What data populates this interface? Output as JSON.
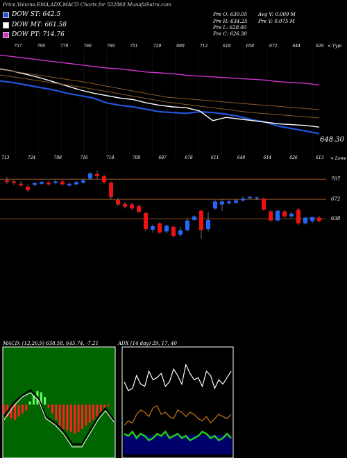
{
  "header": {
    "title": "Price,Volume,EMA,ADX,MACD Charts for 532868 MunafaSutra.com"
  },
  "legend": [
    {
      "label": "DOW ST: 642.5",
      "color": "#2255dd"
    },
    {
      "label": "DOW MT: 661.58",
      "color": "#ffffff"
    },
    {
      "label": "DOW PT: 714.76",
      "color": "#cc33cc"
    }
  ],
  "stats": {
    "prev_open": "Pre O: 630.05",
    "prev_high": "Pre H: 634.25",
    "prev_low": "Pre L: 628.00",
    "prev_close": "Pre C: 626.30",
    "avg_volume": "Avg V: 0.009 M",
    "prev_volume": "Pre V: 0.075 M"
  },
  "top_axis_labels": [
    "757",
    "769",
    "770",
    "760",
    "769",
    "751",
    "729",
    "690",
    "712",
    "618",
    "658",
    "672",
    "644",
    "629"
  ],
  "upper_corner_label": "< Typi",
  "upper_last_value": "648.30",
  "lower_axis_labels": [
    "713",
    "724",
    "708",
    "716",
    "718",
    "709",
    "687",
    "678",
    "611",
    "640",
    "614",
    "626",
    "613"
  ],
  "lower_corner_label": "< Lowe",
  "price_levels": [
    "707",
    "672",
    "638"
  ],
  "macd_title": "MACD: (12,26,9) 638.58, 645.74, -7.21",
  "adx_title": "ADX (14 day) 29, 17, 40",
  "chart_data": [
    {
      "type": "candlestick",
      "title": "Price",
      "y_reference_levels": [
        707,
        672,
        638
      ],
      "candles": [
        {
          "o": 705,
          "c": 702,
          "h": 710,
          "l": 699
        },
        {
          "o": 703,
          "c": 700,
          "h": 706,
          "l": 697
        },
        {
          "o": 699,
          "c": 696,
          "h": 703,
          "l": 694
        },
        {
          "o": 694,
          "c": 688,
          "h": 697,
          "l": 685
        },
        {
          "o": 697,
          "c": 700,
          "h": 702,
          "l": 695
        },
        {
          "o": 699,
          "c": 702,
          "h": 704,
          "l": 697
        },
        {
          "o": 701,
          "c": 698,
          "h": 704,
          "l": 696
        },
        {
          "o": 700,
          "c": 703,
          "h": 706,
          "l": 698
        },
        {
          "o": 703,
          "c": 698,
          "h": 706,
          "l": 696
        },
        {
          "o": 696,
          "c": 699,
          "h": 702,
          "l": 694
        },
        {
          "o": 698,
          "c": 702,
          "h": 704,
          "l": 696
        },
        {
          "o": 701,
          "c": 705,
          "h": 708,
          "l": 699
        },
        {
          "o": 708,
          "c": 717,
          "h": 719,
          "l": 706
        },
        {
          "o": 716,
          "c": 712,
          "h": 722,
          "l": 708
        },
        {
          "o": 712,
          "c": 702,
          "h": 715,
          "l": 699
        },
        {
          "o": 701,
          "c": 676,
          "h": 703,
          "l": 672
        },
        {
          "o": 671,
          "c": 663,
          "h": 674,
          "l": 660
        },
        {
          "o": 664,
          "c": 659,
          "h": 667,
          "l": 656
        },
        {
          "o": 663,
          "c": 656,
          "h": 666,
          "l": 654
        },
        {
          "o": 660,
          "c": 650,
          "h": 663,
          "l": 648
        },
        {
          "o": 648,
          "c": 620,
          "h": 650,
          "l": 617
        },
        {
          "o": 619,
          "c": 625,
          "h": 628,
          "l": 614
        },
        {
          "o": 630,
          "c": 614,
          "h": 632,
          "l": 612
        },
        {
          "o": 616,
          "c": 626,
          "h": 628,
          "l": 612
        },
        {
          "o": 624,
          "c": 608,
          "h": 626,
          "l": 605
        },
        {
          "o": 610,
          "c": 618,
          "h": 624,
          "l": 607
        },
        {
          "o": 618,
          "c": 635,
          "h": 640,
          "l": 616
        },
        {
          "o": 636,
          "c": 642,
          "h": 644,
          "l": 634
        },
        {
          "o": 652,
          "c": 618,
          "h": 654,
          "l": 603
        },
        {
          "o": 620,
          "c": 636,
          "h": 650,
          "l": 616
        },
        {
          "o": 656,
          "c": 668,
          "h": 671,
          "l": 654
        },
        {
          "o": 663,
          "c": 668,
          "h": 672,
          "l": 652
        },
        {
          "o": 665,
          "c": 668,
          "h": 671,
          "l": 663
        },
        {
          "o": 666,
          "c": 670,
          "h": 672,
          "l": 664
        },
        {
          "o": 670,
          "c": 673,
          "h": 677,
          "l": 668
        },
        {
          "o": 674,
          "c": 676,
          "h": 678,
          "l": 672
        },
        {
          "o": 673,
          "c": 675,
          "h": 677,
          "l": 671
        },
        {
          "o": 673,
          "c": 654,
          "h": 675,
          "l": 652
        },
        {
          "o": 651,
          "c": 635,
          "h": 653,
          "l": 633
        },
        {
          "o": 635,
          "c": 652,
          "h": 654,
          "l": 633
        },
        {
          "o": 651,
          "c": 642,
          "h": 653,
          "l": 640
        },
        {
          "o": 642,
          "c": 647,
          "h": 650,
          "l": 640
        },
        {
          "o": 654,
          "c": 630,
          "h": 657,
          "l": 627
        },
        {
          "o": 630,
          "c": 640,
          "h": 641,
          "l": 628
        },
        {
          "o": 634,
          "c": 641,
          "h": 641,
          "l": 630
        },
        {
          "o": 640,
          "c": 634,
          "h": 643,
          "l": 632
        }
      ]
    },
    {
      "type": "line",
      "title": "EMA",
      "series": [
        {
          "color": "#2255dd",
          "values": [
            720,
            718,
            715,
            712,
            709,
            705,
            702,
            699,
            693,
            690,
            688,
            685,
            682,
            681,
            680,
            682,
            681,
            679,
            676,
            672,
            669,
            664,
            661,
            658,
            655
          ]
        },
        {
          "color": "#ffffff",
          "values": [
            735,
            732,
            728,
            724,
            719,
            714,
            709,
            705,
            702,
            699,
            697,
            693,
            690,
            688,
            687,
            683,
            671,
            675,
            673,
            671,
            669,
            667,
            666,
            665,
            663
          ]
        },
        {
          "color": "#cc33cc",
          "values": [
            752,
            750,
            748,
            746,
            744,
            742,
            740,
            738,
            736,
            735,
            733,
            731,
            730,
            729,
            727,
            726,
            725,
            724,
            723,
            722,
            721,
            719,
            718,
            717,
            715
          ]
        }
      ]
    },
    {
      "type": "bar",
      "title": "MACD",
      "values": [
        -6,
        -8,
        -9,
        -10,
        -8,
        -6,
        -4,
        2,
        6,
        9,
        8,
        5,
        -2,
        -6,
        -10,
        -14,
        -16,
        -17,
        -18,
        -19,
        -18,
        -16,
        -14,
        -12,
        -10,
        -8,
        -5,
        -3,
        -1,
        0
      ]
    },
    {
      "type": "line",
      "title": "ADX",
      "series": [
        {
          "color": "#ffffff",
          "values": [
            32,
            28,
            29,
            35,
            31,
            30,
            37,
            33,
            34,
            36,
            30,
            32,
            38,
            35,
            31,
            40,
            36,
            33,
            34,
            30,
            37,
            35,
            29,
            33,
            31,
            34,
            37
          ]
        },
        {
          "color": "#cc7711",
          "values": [
            12,
            14,
            13,
            17,
            19,
            18,
            16,
            20,
            21,
            17,
            18,
            16,
            15,
            19,
            18,
            16,
            18,
            17,
            15,
            14,
            16,
            13,
            15,
            17,
            16,
            15,
            17
          ]
        },
        {
          "color": "#22cc22",
          "values": [
            8,
            7,
            9,
            6,
            8,
            7,
            5,
            6,
            8,
            7,
            9,
            6,
            7,
            8,
            6,
            7,
            5,
            6,
            7,
            9,
            8,
            6,
            7,
            5,
            6,
            8,
            6
          ]
        }
      ]
    }
  ]
}
